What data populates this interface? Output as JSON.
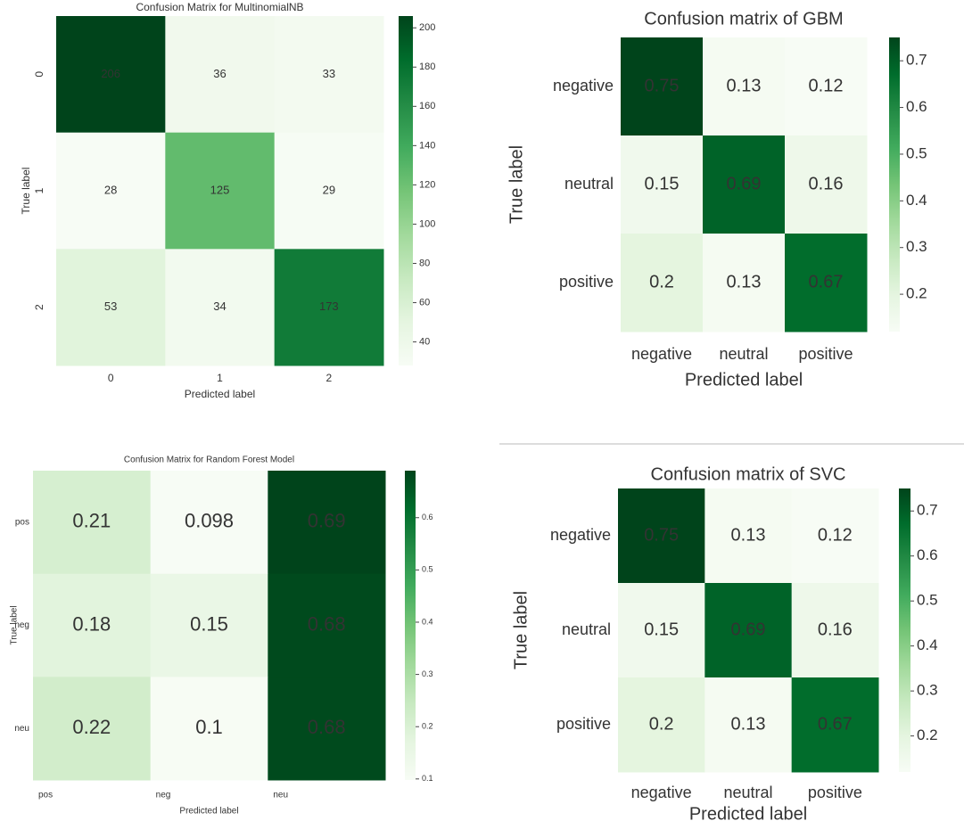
{
  "chart_data": [
    {
      "type": "heatmap",
      "title": "Confusion Matrix for MultinomialNB",
      "xlabel": "Predicted label",
      "ylabel": "True label",
      "x": [
        "0",
        "1",
        "2"
      ],
      "y": [
        "0",
        "1",
        "2"
      ],
      "values": [
        [
          206,
          36,
          33
        ],
        [
          28,
          125,
          29
        ],
        [
          53,
          34,
          173
        ]
      ],
      "cmap": "Greens",
      "colorbar_lim": [
        28,
        206
      ],
      "colorbar_ticks": [
        40,
        60,
        80,
        100,
        120,
        140,
        160,
        180,
        200
      ]
    },
    {
      "type": "heatmap",
      "title": "Confusion matrix of GBM",
      "xlabel": "Predicted label",
      "ylabel": "True label",
      "x": [
        "negative",
        "neutral",
        "positive"
      ],
      "y": [
        "negative",
        "neutral",
        "positive"
      ],
      "values": [
        [
          0.75,
          0.13,
          0.12
        ],
        [
          0.15,
          0.69,
          0.16
        ],
        [
          0.2,
          0.13,
          0.67
        ]
      ],
      "cmap": "Greens",
      "colorbar_lim": [
        0.12,
        0.75
      ],
      "colorbar_ticks": [
        0.2,
        0.3,
        0.4,
        0.5,
        0.6,
        0.7
      ]
    },
    {
      "type": "heatmap",
      "title": "Confusion Matrix for Random Forest Model",
      "xlabel": "Predicted label",
      "ylabel": "True label",
      "x": [
        "pos",
        "neg",
        "neu"
      ],
      "y": [
        "pos",
        "neg",
        "neu"
      ],
      "values": [
        [
          0.21,
          0.098,
          0.69
        ],
        [
          0.18,
          0.15,
          0.68
        ],
        [
          0.22,
          0.1,
          0.68
        ]
      ],
      "cmap": "Greens",
      "colorbar_lim": [
        0.098,
        0.69
      ],
      "colorbar_ticks": [
        0.1,
        0.2,
        0.3,
        0.4,
        0.5,
        0.6
      ]
    },
    {
      "type": "heatmap",
      "title": "Confusion matrix of SVC",
      "xlabel": "Predicted label",
      "ylabel": "True label",
      "x": [
        "negative",
        "neutral",
        "positive"
      ],
      "y": [
        "negative",
        "neutral",
        "positive"
      ],
      "values": [
        [
          0.75,
          0.13,
          0.12
        ],
        [
          0.15,
          0.69,
          0.16
        ],
        [
          0.2,
          0.13,
          0.67
        ]
      ],
      "cmap": "Greens",
      "colorbar_lim": [
        0.12,
        0.75
      ],
      "colorbar_ticks": [
        0.2,
        0.3,
        0.4,
        0.5,
        0.6,
        0.7
      ]
    }
  ]
}
